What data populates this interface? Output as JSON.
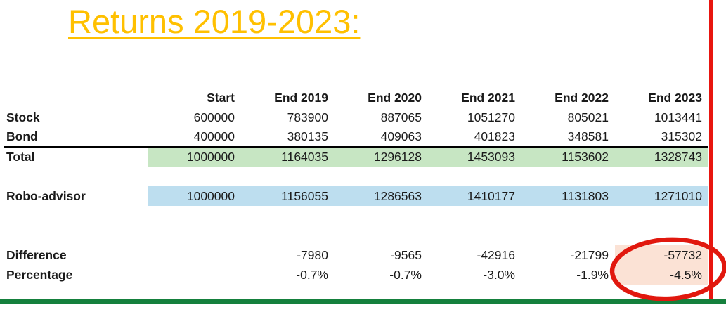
{
  "chart_data": {
    "type": "table",
    "title": "Returns 2019-2023:",
    "columns": [
      "",
      "Start",
      "End 2019",
      "End 2020",
      "End 2021",
      "End 2022",
      "End 2023"
    ],
    "rows": [
      {
        "label": "Stock",
        "values": [
          "600000",
          "783900",
          "887065",
          "1051270",
          "805021",
          "1013441"
        ]
      },
      {
        "label": "Bond",
        "values": [
          "400000",
          "380135",
          "409063",
          "401823",
          "348581",
          "315302"
        ]
      },
      {
        "label": "Total",
        "values": [
          "1000000",
          "1164035",
          "1296128",
          "1453093",
          "1153602",
          "1328743"
        ],
        "fill": "green",
        "top_border": true
      },
      {
        "label": "",
        "values": [
          "",
          "",
          "",
          "",
          "",
          ""
        ],
        "blank": true
      },
      {
        "label": "Robo-advisor",
        "values": [
          "1000000",
          "1156055",
          "1286563",
          "1410177",
          "1131803",
          "1271010"
        ],
        "fill": "blue"
      },
      {
        "label": "",
        "values": [
          "",
          "",
          "",
          "",
          "",
          ""
        ],
        "blank": true
      },
      {
        "label": "",
        "values": [
          "",
          "",
          "",
          "",
          "",
          ""
        ],
        "blank": true
      },
      {
        "label": "Difference",
        "values": [
          "",
          "-7980",
          "-9565",
          "-42916",
          "-21799",
          "-57732"
        ],
        "pink_last": true
      },
      {
        "label": "Percentage",
        "values": [
          "",
          "-0.7%",
          "-0.7%",
          "-3.0%",
          "-1.9%",
          "-4.5%"
        ],
        "pink_last": true
      }
    ],
    "annotation": {
      "circled_cells": "End 2023 Difference and Percentage",
      "circled_values": [
        "-57732",
        "-4.5%"
      ]
    }
  },
  "colors": {
    "title": "#FFC000",
    "total_fill": "#C7E6C3",
    "robo_fill": "#BDDEEF",
    "diff_fill": "#FBE2D5",
    "circle_red": "#E1180E",
    "right_line_red": "#E8150F",
    "bottom_line_green": "#15803D",
    "divider_black": "#000000"
  }
}
